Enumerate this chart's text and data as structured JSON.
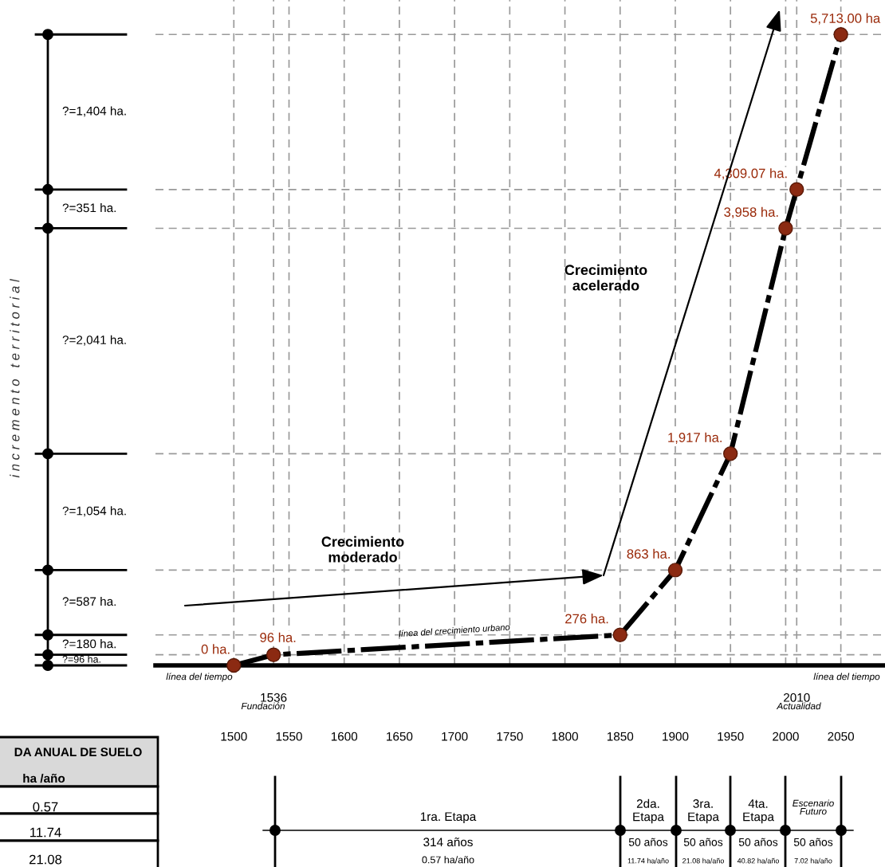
{
  "chart_data": {
    "type": "line",
    "x": [
      1500,
      1536,
      1850,
      1900,
      1950,
      2000,
      2010,
      2050
    ],
    "series": [
      {
        "color": "#000000",
        "colors": [
          "#8b2a12",
          "#8b2a12",
          "#8b2a12",
          "#8b2a12",
          "#8b2a12",
          "#8b2a12",
          "#8b2a12",
          "#8b2a12"
        ],
        "values": [
          0,
          96,
          276,
          863,
          1917,
          3958,
          4309.07,
          5713
        ],
        "value_labels": [
          "0 ha.",
          "96 ha.",
          "276 ha.",
          "863 ha.",
          "1,917 ha.",
          "3,958 ha.",
          "4,309.07 ha.",
          "5,713.00 ha"
        ]
      }
    ],
    "marker": "circle",
    "line_style": "dashed",
    "xlim": [
      1429,
      2090
    ],
    "xticks": [
      1500,
      1550,
      1600,
      1650,
      1700,
      1750,
      1800,
      1850,
      1900,
      1950,
      2000,
      2050
    ],
    "ylim": [
      0,
      6025
    ],
    "grid": "x",
    "tick_labels": "x",
    "ref_lines": [
      {
        "axis": "x",
        "value": 1536,
        "label": "1536"
      },
      {
        "axis": "x",
        "value": 2010,
        "label": "2010"
      },
      {
        "axis": "y",
        "value": 96,
        "label": null
      },
      {
        "axis": "y",
        "value": 276,
        "label": null
      },
      {
        "axis": "y",
        "value": 863,
        "label": null
      },
      {
        "axis": "y",
        "value": 1917,
        "label": null
      },
      {
        "axis": "y",
        "value": 3958,
        "label": null
      },
      {
        "axis": "y",
        "value": 4309.07,
        "label": null
      },
      {
        "axis": "y",
        "value": 5713,
        "label": null
      }
    ],
    "annotations": [
      "?=1,404 ha.",
      "?=351 ha.",
      "?=2,041 ha.",
      "?=1,054 ha.",
      "?=587 ha.",
      "?=180 ha.",
      "?=96 ha.",
      "Crecimiento\nmoderado",
      "Crecimiento\nacelerado",
      "línea del crecimiento urbano",
      "línea del tiempo",
      "línea del tiempo",
      "Fundación",
      "Actualidad",
      "DA ANUAL DE SUELO",
      "ha /año",
      "0.57",
      "11.74",
      "21.08",
      "1ra. Etapa",
      "2da.\nEtapa",
      "3ra.\nEtapa",
      "4ta.\nEtapa",
      "Escenario\nFuturo",
      "314 años",
      "50 años",
      "50 años",
      "50 años",
      "50 años",
      "0.57 ha/año",
      "11.74 ha/año",
      "21.08 ha/año",
      "40.82 ha/año",
      "7.02 ha/año",
      "i n c r e m e n t o   t e r r i t o r i a l"
    ]
  }
}
